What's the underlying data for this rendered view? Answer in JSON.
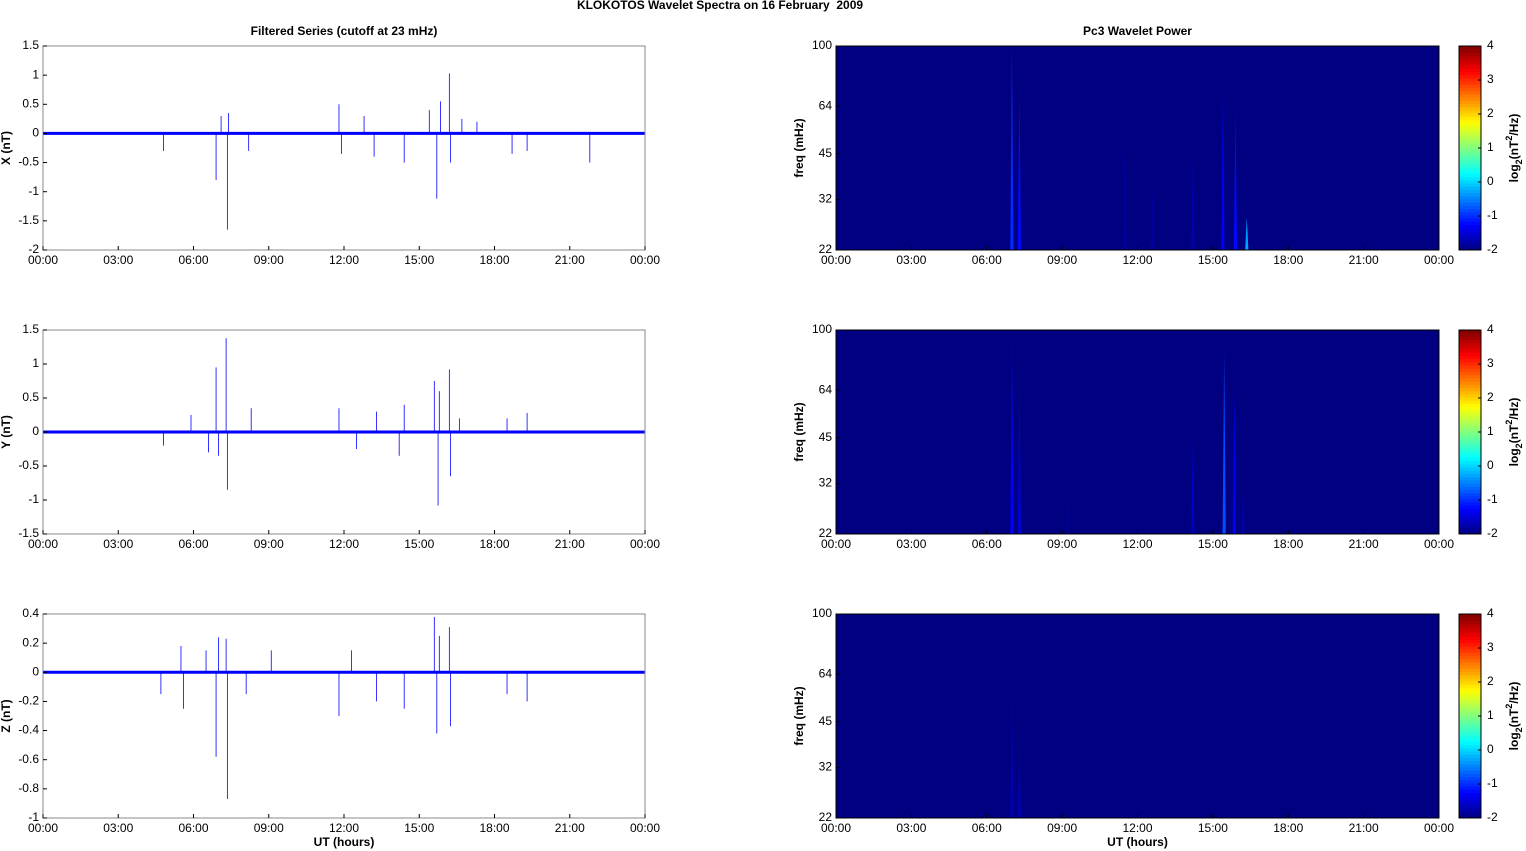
{
  "title": "KLOKOTOS Wavelet Spectra on 16 February  2009",
  "chart_data": [
    {
      "type": "stem",
      "title": "Filtered Series (cutoff at 23 mHz)",
      "ylabel": "X (nT)",
      "color": "#0000ff",
      "x": [
        4.8,
        6.9,
        7.1,
        7.35,
        7.4,
        8.2,
        11.8,
        11.9,
        12.8,
        13.2,
        14.4,
        15.4,
        15.7,
        15.85,
        16.2,
        16.25,
        16.7,
        17.3,
        18.7,
        19.3,
        21.8
      ],
      "values": [
        -0.3,
        -0.8,
        0.3,
        -1.65,
        0.35,
        -0.3,
        0.5,
        -0.35,
        0.3,
        -0.4,
        -0.5,
        0.4,
        -1.12,
        0.55,
        1.03,
        -0.5,
        0.25,
        0.2,
        -0.35,
        -0.3,
        -0.5
      ],
      "xlim": [
        0,
        24
      ],
      "xticks": [
        {
          "value": 0,
          "label": "00:00"
        },
        {
          "value": 3,
          "label": "03:00"
        },
        {
          "value": 6,
          "label": "06:00"
        },
        {
          "value": 9,
          "label": "09:00"
        },
        {
          "value": 12,
          "label": "12:00"
        },
        {
          "value": 15,
          "label": "15:00"
        },
        {
          "value": 18,
          "label": "18:00"
        },
        {
          "value": 21,
          "label": "21:00"
        },
        {
          "value": 24,
          "label": "00:00"
        }
      ],
      "ylim": [
        -2,
        1.5
      ],
      "yticks": [
        -2,
        -1.5,
        -1,
        -0.5,
        0,
        0.5,
        1,
        1.5
      ]
    },
    {
      "type": "stem",
      "ylabel": "Y (nT)",
      "color": "#0000ff",
      "x": [
        4.8,
        5.9,
        6.6,
        6.9,
        7.0,
        7.3,
        7.35,
        8.3,
        11.8,
        12.5,
        13.3,
        14.2,
        14.4,
        15.6,
        15.75,
        15.8,
        16.2,
        16.25,
        16.6,
        18.5,
        19.3
      ],
      "values": [
        -0.2,
        0.25,
        -0.3,
        0.95,
        -0.35,
        1.38,
        -0.85,
        0.35,
        0.35,
        -0.25,
        0.3,
        -0.35,
        0.4,
        0.75,
        -1.08,
        0.6,
        0.92,
        -0.65,
        0.2,
        0.2,
        0.28
      ],
      "xlim": [
        0,
        24
      ],
      "xticks": [
        {
          "value": 0,
          "label": "00:00"
        },
        {
          "value": 3,
          "label": "03:00"
        },
        {
          "value": 6,
          "label": "06:00"
        },
        {
          "value": 9,
          "label": "09:00"
        },
        {
          "value": 12,
          "label": "12:00"
        },
        {
          "value": 15,
          "label": "15:00"
        },
        {
          "value": 18,
          "label": "18:00"
        },
        {
          "value": 21,
          "label": "21:00"
        },
        {
          "value": 24,
          "label": "00:00"
        }
      ],
      "ylim": [
        -1.5,
        1.5
      ],
      "yticks": [
        -1.5,
        -1,
        -0.5,
        0,
        0.5,
        1,
        1.5
      ]
    },
    {
      "type": "stem",
      "ylabel": "Z (nT)",
      "xlabel": "UT (hours)",
      "color": "#0000ff",
      "x": [
        4.7,
        5.5,
        5.6,
        6.5,
        6.9,
        7.0,
        7.3,
        7.35,
        8.1,
        9.1,
        11.8,
        12.3,
        13.3,
        14.4,
        15.6,
        15.7,
        15.8,
        16.2,
        16.25,
        18.5,
        19.3
      ],
      "values": [
        -0.15,
        0.18,
        -0.25,
        0.15,
        -0.58,
        0.24,
        0.23,
        -0.87,
        -0.15,
        0.15,
        -0.3,
        0.15,
        -0.2,
        -0.25,
        0.38,
        -0.42,
        0.25,
        0.31,
        -0.37,
        -0.15,
        -0.2
      ],
      "xlim": [
        0,
        24
      ],
      "xticks": [
        {
          "value": 0,
          "label": "00:00"
        },
        {
          "value": 3,
          "label": "03:00"
        },
        {
          "value": 6,
          "label": "06:00"
        },
        {
          "value": 9,
          "label": "09:00"
        },
        {
          "value": 12,
          "label": "12:00"
        },
        {
          "value": 15,
          "label": "15:00"
        },
        {
          "value": 18,
          "label": "18:00"
        },
        {
          "value": 21,
          "label": "21:00"
        },
        {
          "value": 24,
          "label": "00:00"
        }
      ],
      "ylim": [
        -1,
        0.4
      ],
      "yticks": [
        -1,
        -0.8,
        -0.6,
        -0.4,
        -0.2,
        0,
        0.2,
        0.4
      ]
    },
    {
      "type": "spectrogram",
      "title": "Pc3 Wavelet Power",
      "ylabel": "freq (mHz)",
      "yscale": "log",
      "colormap": "jet",
      "streaks": {
        "x": [
          7.0,
          7.3,
          11.5,
          12.6,
          14.2,
          15.4,
          15.9,
          16.35
        ],
        "values": [
          -1.0,
          -1.2,
          -1.8,
          -1.8,
          -1.7,
          -1.3,
          -1.2,
          -0.3
        ],
        "fmax": [
          100,
          75,
          60,
          35,
          45,
          70,
          64,
          28
        ]
      },
      "xlim": [
        0,
        24
      ],
      "xticks": [
        {
          "value": 0,
          "label": "00:00"
        },
        {
          "value": 3,
          "label": "03:00"
        },
        {
          "value": 6,
          "label": "06:00"
        },
        {
          "value": 9,
          "label": "09:00"
        },
        {
          "value": 12,
          "label": "12:00"
        },
        {
          "value": 15,
          "label": "15:00"
        },
        {
          "value": 18,
          "label": "18:00"
        },
        {
          "value": 21,
          "label": "21:00"
        },
        {
          "value": 24,
          "label": "00:00"
        }
      ],
      "ylim": [
        22,
        100
      ],
      "yticks": [
        22,
        32,
        45,
        64,
        100
      ],
      "clim": [
        -2,
        4
      ],
      "cticks": [
        -2,
        -1,
        0,
        1,
        2,
        3,
        4
      ],
      "colorbar_label": {
        "base": "log",
        "sub": "2",
        "mid": "(nT",
        "sup": "2",
        "end": "/Hz)"
      }
    },
    {
      "type": "spectrogram",
      "ylabel": "freq (mHz)",
      "yscale": "log",
      "colormap": "jet",
      "streaks": {
        "x": [
          7.0,
          7.3,
          9.2,
          14.2,
          15.45,
          15.85,
          16.2
        ],
        "values": [
          -1.3,
          -1.5,
          -1.9,
          -1.6,
          -0.8,
          -1.3,
          -1.7
        ],
        "fmax": [
          100,
          70,
          35,
          45,
          85,
          64,
          30
        ]
      },
      "xlim": [
        0,
        24
      ],
      "xticks": [
        {
          "value": 0,
          "label": "00:00"
        },
        {
          "value": 3,
          "label": "03:00"
        },
        {
          "value": 6,
          "label": "06:00"
        },
        {
          "value": 9,
          "label": "09:00"
        },
        {
          "value": 12,
          "label": "12:00"
        },
        {
          "value": 15,
          "label": "15:00"
        },
        {
          "value": 18,
          "label": "18:00"
        },
        {
          "value": 21,
          "label": "21:00"
        },
        {
          "value": 24,
          "label": "00:00"
        }
      ],
      "ylim": [
        22,
        100
      ],
      "yticks": [
        22,
        32,
        45,
        64,
        100
      ],
      "clim": [
        -2,
        4
      ],
      "cticks": [
        -2,
        -1,
        0,
        1,
        2,
        3,
        4
      ],
      "colorbar_label": {
        "base": "log",
        "sub": "2",
        "mid": "(nT",
        "sup": "2",
        "end": "/Hz)"
      }
    },
    {
      "type": "spectrogram",
      "ylabel": "freq (mHz)",
      "xlabel": "UT (hours)",
      "yscale": "log",
      "colormap": "jet",
      "streaks": {
        "x": [
          7.0,
          7.3
        ],
        "values": [
          -1.7,
          -1.7
        ],
        "fmax": [
          60,
          40
        ]
      },
      "xlim": [
        0,
        24
      ],
      "xticks": [
        {
          "value": 0,
          "label": "00:00"
        },
        {
          "value": 3,
          "label": "03:00"
        },
        {
          "value": 6,
          "label": "06:00"
        },
        {
          "value": 9,
          "label": "09:00"
        },
        {
          "value": 12,
          "label": "12:00"
        },
        {
          "value": 15,
          "label": "15:00"
        },
        {
          "value": 18,
          "label": "18:00"
        },
        {
          "value": 21,
          "label": "21:00"
        },
        {
          "value": 24,
          "label": "00:00"
        }
      ],
      "ylim": [
        22,
        100
      ],
      "yticks": [
        22,
        32,
        45,
        64,
        100
      ],
      "clim": [
        -2,
        4
      ],
      "cticks": [
        -2,
        -1,
        0,
        1,
        2,
        3,
        4
      ],
      "colorbar_label": {
        "base": "log",
        "sub": "2",
        "mid": "(nT",
        "sup": "2",
        "end": "/Hz)"
      }
    }
  ]
}
